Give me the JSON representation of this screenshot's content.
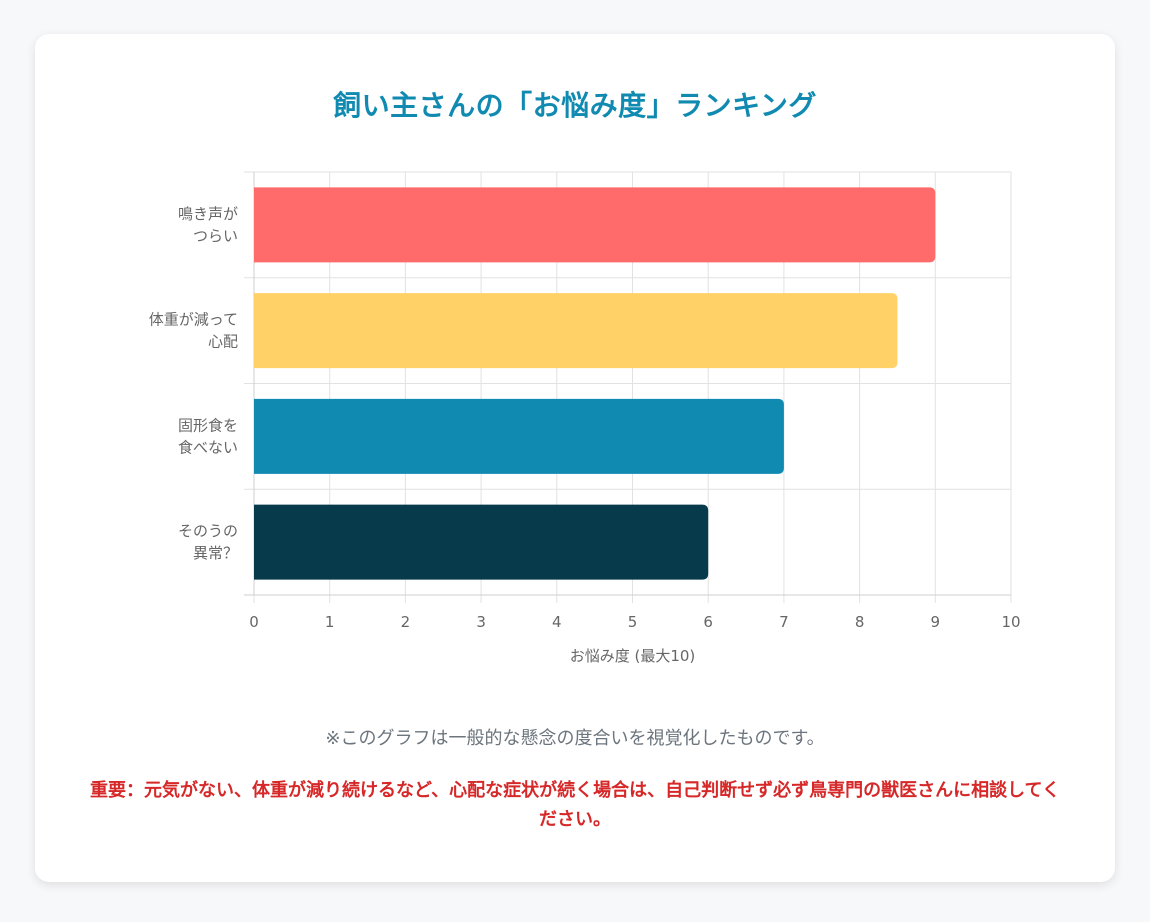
{
  "chart_data": {
    "type": "bar",
    "orientation": "horizontal",
    "title": "飼い主さんの「お悩み度」ランキング",
    "xlabel": "お悩み度 (最大10)",
    "ylabel": "",
    "xlim": [
      0,
      10
    ],
    "x_ticks": [
      "0",
      "1",
      "2",
      "3",
      "4",
      "5",
      "6",
      "7",
      "8",
      "9",
      "10"
    ],
    "grid": true,
    "categories": [
      [
        "鳴き声が",
        "つらい"
      ],
      [
        "体重が減って",
        "心配"
      ],
      [
        "固形食を",
        "食べない"
      ],
      [
        "そのうの",
        "異常？"
      ]
    ],
    "values": [
      9,
      8.5,
      7,
      6
    ],
    "colors": [
      "#ff6b6b",
      "#ffd166",
      "#118ab2",
      "#073b4c"
    ]
  },
  "note": "※このグラフは一般的な懸念の度合いを視覚化したものです。",
  "warning": "重要：元気がない、体重が減り続けるなど、心配な症状が続く場合は、自己判断せず必ず鳥専門の獣医さんに相談してください。"
}
